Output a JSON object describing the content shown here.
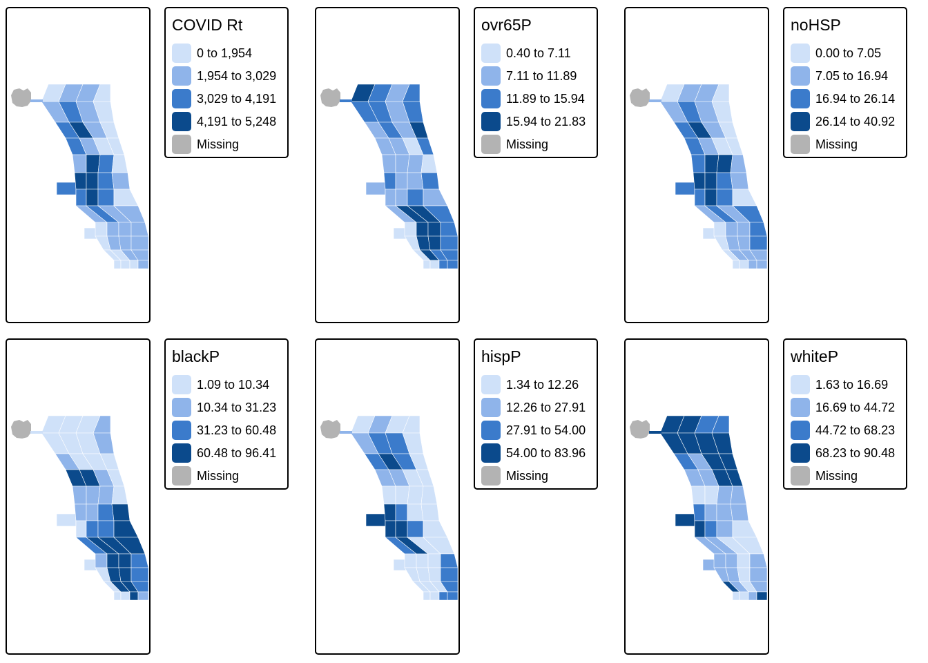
{
  "missing_color": "#b3b3b3",
  "panels": [
    {
      "title": "COVID Rt",
      "classes": [
        {
          "label": "0 to 1,954",
          "color": "#cfe1f9"
        },
        {
          "label": "1,954 to 3,029",
          "color": "#8fb4ea"
        },
        {
          "label": "3,029 to 4,191",
          "color": "#3b7bcb"
        },
        {
          "label": "4,191 to 5,248",
          "color": "#0b4a8c"
        },
        {
          "label": "Missing",
          "color": "#b3b3b3"
        }
      ],
      "pattern": [
        [
          0,
          1,
          1,
          0
        ],
        [
          1,
          2,
          1,
          0
        ],
        [
          2,
          3,
          1,
          0
        ],
        [
          2,
          1,
          0,
          0
        ],
        [
          1,
          3,
          2,
          0
        ],
        [
          3,
          3,
          2,
          1
        ],
        [
          2,
          3,
          2,
          0
        ],
        [
          1,
          2,
          1,
          1
        ],
        [
          0,
          1,
          1,
          1
        ],
        [
          0,
          1,
          1,
          1
        ],
        [
          0,
          0,
          1,
          1
        ],
        [
          0,
          0,
          0,
          1
        ]
      ]
    },
    {
      "title": "ovr65P",
      "classes": [
        {
          "label": "0.40 to 7.11",
          "color": "#cfe1f9"
        },
        {
          "label": "7.11 to 11.89",
          "color": "#8fb4ea"
        },
        {
          "label": "11.89 to 15.94",
          "color": "#3b7bcb"
        },
        {
          "label": "15.94 to 21.83",
          "color": "#0b4a8c"
        },
        {
          "label": "Missing",
          "color": "#b3b3b3"
        }
      ],
      "pattern": [
        [
          3,
          2,
          1,
          2
        ],
        [
          2,
          2,
          1,
          2
        ],
        [
          1,
          2,
          1,
          3
        ],
        [
          1,
          1,
          0,
          2
        ],
        [
          1,
          1,
          1,
          0
        ],
        [
          2,
          1,
          1,
          2
        ],
        [
          1,
          1,
          2,
          1
        ],
        [
          1,
          3,
          3,
          2
        ],
        [
          0,
          3,
          3,
          2
        ],
        [
          0,
          3,
          3,
          2
        ],
        [
          0,
          3,
          2,
          2
        ],
        [
          0,
          0,
          2,
          2
        ]
      ]
    },
    {
      "title": "noHSP",
      "classes": [
        {
          "label": "0.00 to 7.05",
          "color": "#cfe1f9"
        },
        {
          "label": "7.05 to 16.94",
          "color": "#8fb4ea"
        },
        {
          "label": "16.94 to 26.14",
          "color": "#3b7bcb"
        },
        {
          "label": "26.14 to 40.92",
          "color": "#0b4a8c"
        },
        {
          "label": "Missing",
          "color": "#b3b3b3"
        }
      ],
      "pattern": [
        [
          0,
          1,
          1,
          0
        ],
        [
          1,
          2,
          1,
          0
        ],
        [
          2,
          3,
          1,
          0
        ],
        [
          2,
          1,
          0,
          0
        ],
        [
          2,
          3,
          3,
          1
        ],
        [
          3,
          3,
          2,
          1
        ],
        [
          2,
          3,
          2,
          0
        ],
        [
          1,
          2,
          1,
          2
        ],
        [
          0,
          1,
          1,
          2
        ],
        [
          0,
          1,
          1,
          2
        ],
        [
          0,
          1,
          1,
          1
        ],
        [
          0,
          0,
          1,
          1
        ]
      ]
    },
    {
      "title": "blackP",
      "classes": [
        {
          "label": "1.09 to 10.34",
          "color": "#cfe1f9"
        },
        {
          "label": "10.34 to 31.23",
          "color": "#8fb4ea"
        },
        {
          "label": "31.23 to 60.48",
          "color": "#3b7bcb"
        },
        {
          "label": "60.48 to 96.41",
          "color": "#0b4a8c"
        },
        {
          "label": "Missing",
          "color": "#b3b3b3"
        }
      ],
      "pattern": [
        [
          0,
          0,
          0,
          1
        ],
        [
          0,
          0,
          0,
          1
        ],
        [
          1,
          0,
          0,
          0
        ],
        [
          3,
          3,
          1,
          0
        ],
        [
          1,
          1,
          1,
          0
        ],
        [
          1,
          1,
          2,
          3
        ],
        [
          0,
          2,
          2,
          3
        ],
        [
          2,
          3,
          3,
          3
        ],
        [
          1,
          3,
          3,
          2
        ],
        [
          0,
          3,
          3,
          2
        ],
        [
          0,
          3,
          3,
          2
        ],
        [
          0,
          0,
          3,
          1
        ]
      ]
    },
    {
      "title": "hispP",
      "classes": [
        {
          "label": "1.34 to 12.26",
          "color": "#cfe1f9"
        },
        {
          "label": "12.26 to 27.91",
          "color": "#8fb4ea"
        },
        {
          "label": "27.91 to 54.00",
          "color": "#3b7bcb"
        },
        {
          "label": "54.00 to 83.96",
          "color": "#0b4a8c"
        },
        {
          "label": "Missing",
          "color": "#b3b3b3"
        }
      ],
      "pattern": [
        [
          0,
          1,
          0,
          0
        ],
        [
          1,
          2,
          2,
          0
        ],
        [
          2,
          3,
          2,
          0
        ],
        [
          1,
          1,
          0,
          0
        ],
        [
          0,
          0,
          0,
          0
        ],
        [
          3,
          2,
          0,
          0
        ],
        [
          3,
          3,
          2,
          0
        ],
        [
          2,
          3,
          0,
          0
        ],
        [
          0,
          0,
          0,
          2
        ],
        [
          0,
          0,
          0,
          2
        ],
        [
          0,
          0,
          0,
          2
        ],
        [
          0,
          0,
          2,
          2
        ]
      ]
    },
    {
      "title": "whiteP",
      "classes": [
        {
          "label": "1.63 to 16.69",
          "color": "#cfe1f9"
        },
        {
          "label": "16.69 to 44.72",
          "color": "#8fb4ea"
        },
        {
          "label": "44.72 to 68.23",
          "color": "#3b7bcb"
        },
        {
          "label": "68.23 to 90.48",
          "color": "#0b4a8c"
        },
        {
          "label": "Missing",
          "color": "#b3b3b3"
        }
      ],
      "pattern": [
        [
          3,
          3,
          2,
          2
        ],
        [
          3,
          3,
          3,
          3
        ],
        [
          2,
          1,
          3,
          3
        ],
        [
          1,
          1,
          3,
          3
        ],
        [
          0,
          0,
          1,
          1
        ],
        [
          2,
          1,
          1,
          1
        ],
        [
          3,
          2,
          1,
          0
        ],
        [
          1,
          1,
          0,
          0
        ],
        [
          1,
          1,
          0,
          1
        ],
        [
          1,
          1,
          0,
          1
        ],
        [
          3,
          1,
          0,
          1
        ],
        [
          0,
          0,
          1,
          3
        ]
      ]
    }
  ]
}
